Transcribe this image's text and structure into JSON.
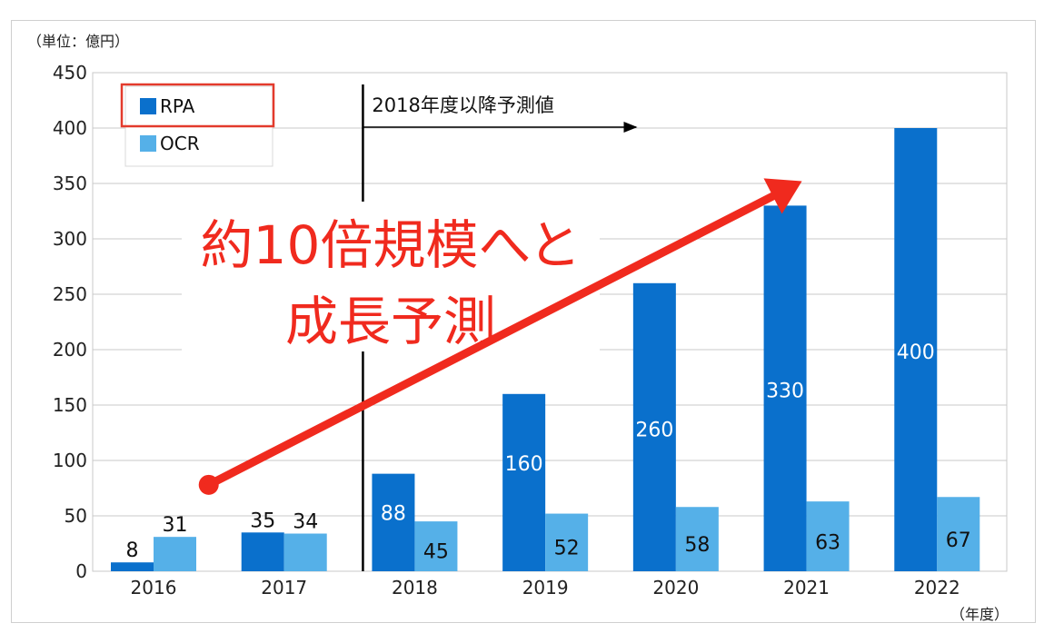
{
  "chart_data": {
    "type": "bar",
    "unit_label": "（単位：億円）",
    "x_unit_label": "（年度）",
    "categories": [
      "2016",
      "2017",
      "2018",
      "2019",
      "2020",
      "2021",
      "2022"
    ],
    "series": [
      {
        "name": "RPA",
        "values": [
          8,
          35,
          88,
          160,
          260,
          330,
          400
        ],
        "color": "#0a70cc"
      },
      {
        "name": "OCR",
        "values": [
          31,
          34,
          45,
          52,
          58,
          63,
          67
        ],
        "color": "#55b0e8"
      }
    ],
    "ylim": [
      0,
      450
    ],
    "yticks": [
      0,
      50,
      100,
      150,
      200,
      250,
      300,
      350,
      400,
      450
    ],
    "grid": true,
    "legend": "top-left",
    "forecast": {
      "text": "2018年度以降予測値",
      "after_category": "2017"
    },
    "annotation": {
      "lines": [
        "約10倍規模へと",
        "成長予測"
      ],
      "color": "#f02a1e",
      "arrow_from": {
        "category": "2017",
        "value": 78
      },
      "arrow_to": {
        "category": "2021",
        "value": 352
      }
    }
  }
}
